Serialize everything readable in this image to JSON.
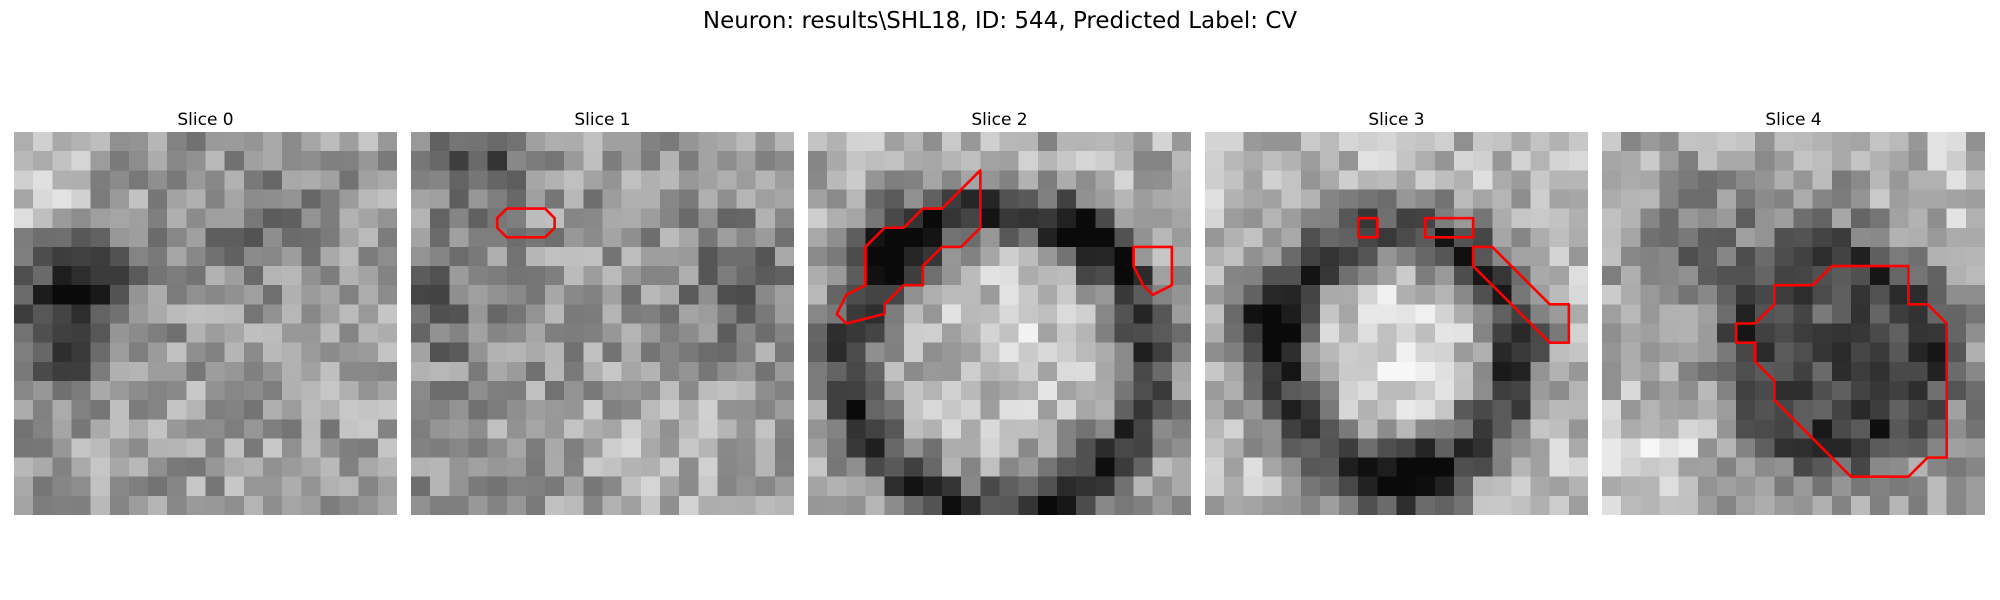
{
  "figure": {
    "title": "Neuron: results\\SHL18, ID: 544, Predicted Label: CV"
  },
  "panels": [
    {
      "title": "Slice 0",
      "roi_outlines": []
    },
    {
      "title": "Slice 1",
      "roi_outlines": [
        [
          [
            5,
            4
          ],
          [
            7,
            4
          ],
          [
            7.5,
            4.5
          ],
          [
            7.5,
            5
          ],
          [
            7,
            5.5
          ],
          [
            5,
            5.5
          ],
          [
            4.5,
            5
          ],
          [
            4.5,
            4.5
          ]
        ]
      ]
    },
    {
      "title": "Slice 2",
      "roi_outlines": [
        [
          [
            7,
            4
          ],
          [
            8,
            3
          ],
          [
            9,
            2
          ],
          [
            9,
            5
          ],
          [
            8,
            6
          ],
          [
            7,
            6
          ],
          [
            6,
            7
          ],
          [
            6,
            8
          ],
          [
            5,
            8
          ],
          [
            4,
            9
          ],
          [
            4,
            9.5
          ],
          [
            2,
            10
          ],
          [
            1.5,
            9.5
          ],
          [
            2,
            8.5
          ],
          [
            3,
            8
          ],
          [
            3,
            6
          ],
          [
            4,
            5
          ],
          [
            5,
            5
          ],
          [
            6,
            4
          ]
        ],
        [
          [
            17,
            6
          ],
          [
            19,
            6
          ],
          [
            19,
            8
          ],
          [
            18,
            8.5
          ],
          [
            17.5,
            8
          ],
          [
            17,
            7
          ]
        ]
      ]
    },
    {
      "title": "Slice 3",
      "roi_outlines": [
        [
          [
            8,
            4.5
          ],
          [
            9,
            4.5
          ],
          [
            9,
            5.5
          ],
          [
            8,
            5.5
          ]
        ],
        [
          [
            11.5,
            4.5
          ],
          [
            14,
            4.5
          ],
          [
            14,
            5.5
          ],
          [
            11.5,
            5.5
          ]
        ],
        [
          [
            14,
            6
          ],
          [
            15,
            6
          ],
          [
            16,
            7
          ],
          [
            17,
            8
          ],
          [
            18,
            9
          ],
          [
            19,
            9
          ],
          [
            19,
            11
          ],
          [
            18,
            11
          ],
          [
            17,
            10
          ],
          [
            16,
            9
          ],
          [
            15,
            8
          ],
          [
            14,
            7
          ]
        ]
      ]
    },
    {
      "title": "Slice 4",
      "roi_outlines": [
        [
          [
            12,
            7
          ],
          [
            16,
            7
          ],
          [
            16,
            9
          ],
          [
            17,
            9
          ],
          [
            18,
            10
          ],
          [
            18,
            17
          ],
          [
            17,
            17
          ],
          [
            16,
            18
          ],
          [
            13,
            18
          ],
          [
            12,
            17
          ],
          [
            11,
            16
          ],
          [
            10,
            15
          ],
          [
            9,
            14
          ],
          [
            9,
            13
          ],
          [
            8,
            12
          ],
          [
            8,
            11
          ],
          [
            7,
            11
          ],
          [
            7,
            10
          ],
          [
            8,
            10
          ],
          [
            9,
            9
          ],
          [
            9,
            8
          ],
          [
            11,
            8
          ]
        ]
      ]
    }
  ],
  "image_style": {
    "colormap": "gray",
    "roi_color": "#ff0000",
    "grid_size": 20
  }
}
